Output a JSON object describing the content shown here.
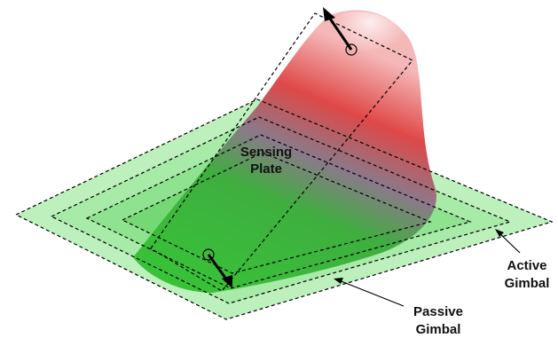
{
  "labels": [
    {
      "lines": [
        "Sensing",
        "Plate"
      ]
    },
    {
      "lines": [
        "Active",
        "Gimbal"
      ]
    },
    {
      "lines": [
        "Passive",
        "Gimbal"
      ]
    }
  ]
}
